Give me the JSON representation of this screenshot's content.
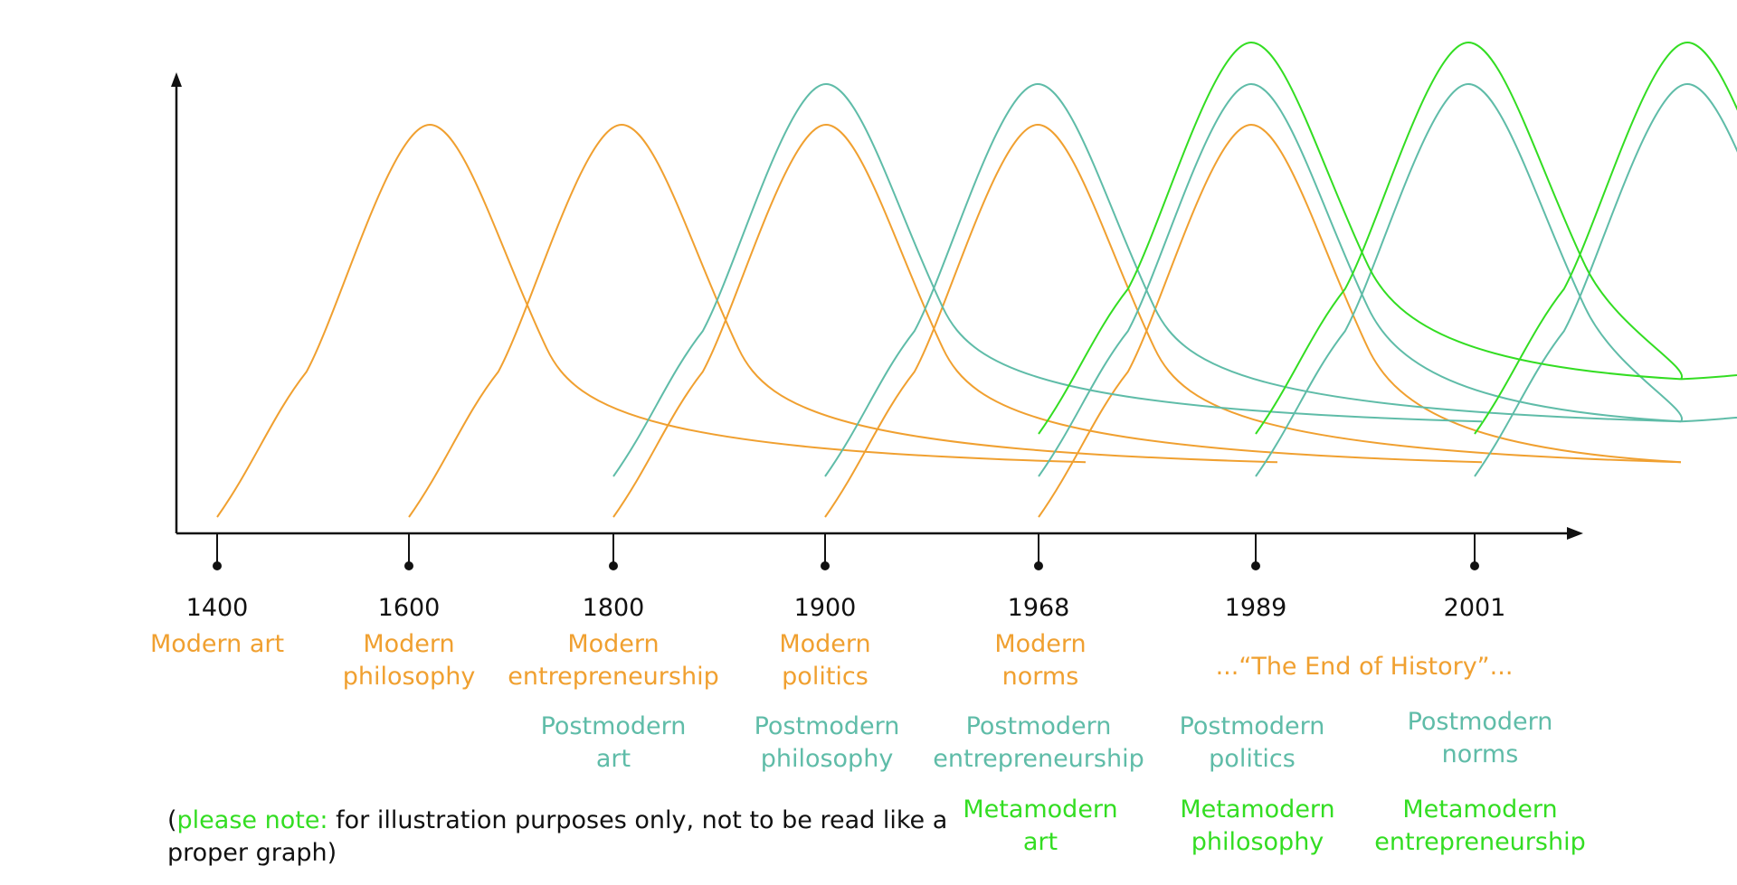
{
  "colors": {
    "modern": "#f0a030",
    "postmodern": "#5fbca8",
    "metamodern": "#33dd22",
    "axis": "#111111"
  },
  "years": [
    "1400",
    "1600",
    "1800",
    "1900",
    "1968",
    "1989",
    "2001"
  ],
  "modern_labels": [
    [
      "Modern art"
    ],
    [
      "Modern",
      "philosophy"
    ],
    [
      "Modern",
      "entrepreneurship"
    ],
    [
      "Modern",
      "politics"
    ],
    [
      "Modern",
      "norms"
    ]
  ],
  "end_of_history": "...“The End of History”...",
  "postmodern_labels": [
    [
      "Postmodern",
      "art"
    ],
    [
      "Postmodern",
      "philosophy"
    ],
    [
      "Postmodern",
      "entrepreneurship"
    ],
    [
      "Postmodern",
      "politics"
    ],
    [
      "Postmodern",
      "norms"
    ]
  ],
  "metamodern_labels": [
    [
      "Metamodern",
      "art"
    ],
    [
      "Metamodern",
      "philosophy"
    ],
    [
      "Metamodern",
      "entrepreneurship"
    ]
  ],
  "note": {
    "open_paren": "(",
    "highlight": "please note:",
    "line1_rest": " for illustration purposes only, not to be read like a",
    "line2": "proper graph)"
  },
  "chart_data": {
    "type": "line",
    "title": "",
    "xlabel": "",
    "ylabel": "",
    "categories": [
      "1400",
      "1600",
      "1800",
      "1900",
      "1968",
      "1989",
      "2001"
    ],
    "series": [
      {
        "name": "Modern art",
        "group": "modern",
        "start": "1400"
      },
      {
        "name": "Modern philosophy",
        "group": "modern",
        "start": "1600"
      },
      {
        "name": "Modern entrepreneurship",
        "group": "modern",
        "start": "1800"
      },
      {
        "name": "Modern politics",
        "group": "modern",
        "start": "1900"
      },
      {
        "name": "Modern norms",
        "group": "modern",
        "start": "1968"
      },
      {
        "name": "Postmodern art",
        "group": "postmodern",
        "start": "1800"
      },
      {
        "name": "Postmodern philosophy",
        "group": "postmodern",
        "start": "1900"
      },
      {
        "name": "Postmodern entrepreneurship",
        "group": "postmodern",
        "start": "1968"
      },
      {
        "name": "Postmodern politics",
        "group": "postmodern",
        "start": "1989"
      },
      {
        "name": "Postmodern norms",
        "group": "postmodern",
        "start": "2001"
      },
      {
        "name": "Metamodern art",
        "group": "metamodern",
        "start": "1968"
      },
      {
        "name": "Metamodern philosophy",
        "group": "metamodern",
        "start": "1989"
      },
      {
        "name": "Metamodern entrepreneurship",
        "group": "metamodern",
        "start": "2001"
      }
    ]
  }
}
